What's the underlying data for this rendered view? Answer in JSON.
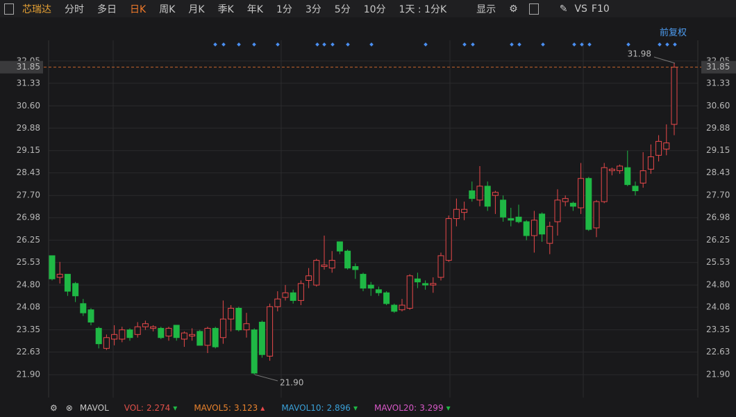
{
  "toolbar": {
    "symbol": "芯瑞达",
    "periods": [
      "分时",
      "多日",
      "日K",
      "周K",
      "月K",
      "季K",
      "年K",
      "1分",
      "3分",
      "5分",
      "10分"
    ],
    "interval": "1天 : 1分K",
    "display": "显示",
    "vs": "VS",
    "f10": "F10",
    "adjust": "前复权"
  },
  "indicator_bar": {
    "name": "MAVOL",
    "vol_label": "VOL:",
    "vol": 2.274,
    "mavol5_label": "MAVOL5:",
    "mavol5": 3.123,
    "mavol10_label": "MAVOL10:",
    "mavol10": 2.896,
    "mavol20_label": "MAVOL20:",
    "mavol20": 3.299
  },
  "chart_data": {
    "type": "candlestick",
    "up_color": "#e8484a",
    "down_color": "#1fb845",
    "ylim": [
      21.25,
      32.45
    ],
    "yticks": [
      {
        "value": 21.9,
        "label": "21.90"
      },
      22.63,
      23.35,
      24.08,
      {
        "value": 24.8,
        "label": "24.80"
      },
      25.53,
      26.25,
      26.98,
      {
        "value": 27.7,
        "label": "27.70"
      },
      28.43,
      29.15,
      29.88,
      {
        "value": 30.6,
        "label": "30.60"
      },
      31.33,
      32.05
    ],
    "grid": true,
    "last_price": 31.85,
    "high_annotation": 31.98,
    "low_annotation": {
      "value": 21.9,
      "label": "21.90"
    },
    "open": [
      25.75,
      25.05,
      25.15,
      24.85,
      24.2,
      24.0,
      23.4,
      22.75,
      23.05,
      23.05,
      23.35,
      23.2,
      23.45,
      23.4,
      23.4,
      23.15,
      23.5,
      23.05,
      23.15,
      23.3,
      22.85,
      23.4,
      23.1,
      23.7,
      24.05,
      23.35,
      23.35,
      23.6,
      22.5,
      24.1,
      24.4,
      24.55,
      24.3,
      24.95,
      24.8,
      25.4,
      25.35,
      26.2,
      25.9,
      25.4,
      25.15,
      24.8,
      24.65,
      24.55,
      24.15,
      24.0,
      24.05,
      25.0,
      24.85,
      24.8,
      25.05,
      25.6,
      26.95,
      27.15,
      27.85,
      27.55,
      28.0,
      27.7,
      27.55,
      26.95,
      27.0,
      26.85,
      26.4,
      27.1,
      26.15,
      26.85,
      27.5,
      27.45,
      27.3,
      28.25,
      26.65,
      27.5,
      28.5,
      28.5,
      28.6,
      28.0,
      28.1,
      28.55,
      29.0,
      29.2,
      30.0
    ],
    "high": [
      25.75,
      25.55,
      25.15,
      24.9,
      24.35,
      24.05,
      23.45,
      23.2,
      23.5,
      23.45,
      23.4,
      23.6,
      23.65,
      23.5,
      23.45,
      23.45,
      23.5,
      23.3,
      23.4,
      23.35,
      23.45,
      23.45,
      24.3,
      24.15,
      24.1,
      23.9,
      23.4,
      23.65,
      24.2,
      24.6,
      24.8,
      24.65,
      24.95,
      25.35,
      25.65,
      26.4,
      25.9,
      26.2,
      25.95,
      25.5,
      25.2,
      24.9,
      24.75,
      24.6,
      24.2,
      24.35,
      25.15,
      25.2,
      24.95,
      25.05,
      25.85,
      27.05,
      27.6,
      27.5,
      28.15,
      28.65,
      28.15,
      27.85,
      27.7,
      27.3,
      27.4,
      26.9,
      27.2,
      27.15,
      26.85,
      27.9,
      27.7,
      27.5,
      28.75,
      28.3,
      27.55,
      28.75,
      28.6,
      28.7,
      29.15,
      28.15,
      29.1,
      29.35,
      29.65,
      30.0,
      31.98
    ],
    "low": [
      24.95,
      24.85,
      24.45,
      24.25,
      23.8,
      23.5,
      22.75,
      22.7,
      22.85,
      22.95,
      23.0,
      23.1,
      23.35,
      23.3,
      23.05,
      23.0,
      23.0,
      22.8,
      23.0,
      22.85,
      22.6,
      22.75,
      22.9,
      23.3,
      23.3,
      23.1,
      21.9,
      22.45,
      22.35,
      23.95,
      24.3,
      24.2,
      24.15,
      24.7,
      24.75,
      25.3,
      25.2,
      25.8,
      25.3,
      25.0,
      24.6,
      24.45,
      24.45,
      24.15,
      23.9,
      23.95,
      24.0,
      24.7,
      24.65,
      24.55,
      24.95,
      25.55,
      26.7,
      26.9,
      27.5,
      27.35,
      27.2,
      27.1,
      26.85,
      26.7,
      26.8,
      26.25,
      25.85,
      26.2,
      25.8,
      26.4,
      27.35,
      27.2,
      27.1,
      26.55,
      26.35,
      27.45,
      28.35,
      28.4,
      28.0,
      27.7,
      27.95,
      28.4,
      28.8,
      29.0,
      29.65
    ],
    "close": [
      25.0,
      25.15,
      24.6,
      24.45,
      23.9,
      23.6,
      22.9,
      23.1,
      23.2,
      23.35,
      23.1,
      23.45,
      23.55,
      23.45,
      23.1,
      23.4,
      23.1,
      23.25,
      23.2,
      22.85,
      23.4,
      22.8,
      23.7,
      24.05,
      23.35,
      23.55,
      21.95,
      22.55,
      24.1,
      24.35,
      24.55,
      24.3,
      24.85,
      25.1,
      25.6,
      25.45,
      25.6,
      25.9,
      25.35,
      25.3,
      24.7,
      24.7,
      24.55,
      24.2,
      23.95,
      24.15,
      25.1,
      24.9,
      24.8,
      24.85,
      25.75,
      26.95,
      27.25,
      27.25,
      27.6,
      28.0,
      27.35,
      27.8,
      27.0,
      26.9,
      26.85,
      26.4,
      26.9,
      26.45,
      26.7,
      27.55,
      27.6,
      27.35,
      28.25,
      26.6,
      27.5,
      28.6,
      28.55,
      28.65,
      28.05,
      27.85,
      28.5,
      28.95,
      29.45,
      29.4,
      31.85
    ]
  }
}
